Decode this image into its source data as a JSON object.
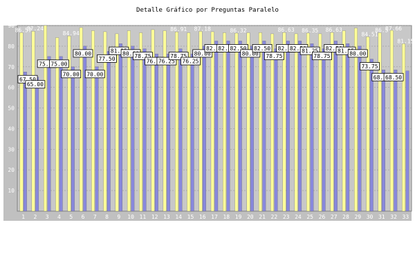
{
  "chart_data": {
    "type": "bar",
    "title": "Detalle Gráfico por Preguntas Paralelo",
    "xlabel": "",
    "ylabel": "",
    "ylim": [
      0,
      90
    ],
    "yticks": [
      10,
      20,
      30,
      40,
      50,
      60,
      70,
      80,
      90
    ],
    "grid": true,
    "categories": [
      "1",
      "2",
      "3",
      "4",
      "5",
      "6",
      "7",
      "8",
      "9",
      "10",
      "11",
      "12",
      "13",
      "14",
      "15",
      "16",
      "17",
      "18",
      "19",
      "20",
      "21",
      "22",
      "23",
      "24",
      "25",
      "26",
      "27",
      "28",
      "29",
      "30",
      "31",
      "32",
      "33"
    ],
    "series": [
      {
        "color": "#ffff99",
        "values": [
          86.57,
          87.24,
          90.0,
          84.14,
          84.94,
          89.0,
          87.5,
          87.0,
          86.0,
          87.5,
          86.5,
          88.0,
          87.5,
          86.91,
          86.5,
          87.18,
          87.0,
          86.5,
          86.32,
          86.5,
          86.59,
          86.0,
          86.63,
          86.0,
          86.35,
          86.0,
          86.63,
          87.5,
          88.8,
          84.51,
          86.5,
          87.66,
          81.15
        ],
        "labels": [
          "86.57",
          "87.24",
          "",
          "",
          "84.94",
          "",
          "",
          "",
          "",
          "",
          "",
          "",
          "",
          "86.91",
          "",
          "87.18",
          "",
          "",
          "86.32",
          "",
          "",
          "",
          "86.63",
          "",
          "86.35",
          "",
          "86.63",
          "",
          "",
          "84.51",
          "86.5",
          "87.66",
          "81.15"
        ]
      },
      {
        "color": "#8888dd",
        "values": [
          67.5,
          65.0,
          75.0,
          75.0,
          70.0,
          80.0,
          70.0,
          77.5,
          81.25,
          80.0,
          78.75,
          76.25,
          76.25,
          78.75,
          76.25,
          80.0,
          82.5,
          82.5,
          82.5,
          80.0,
          82.5,
          78.75,
          82.5,
          82.5,
          81.25,
          78.75,
          82.5,
          81.25,
          80.0,
          73.75,
          68.5,
          68.5,
          68.0
        ],
        "labels": [
          "67.50",
          "65.00",
          "75.00",
          "75.00",
          "70.00",
          "80.00",
          "70.00",
          "77.50",
          "81.25",
          "80.00",
          "78.75",
          "76.25",
          "76.25",
          "78.75",
          "76.25",
          "80.00",
          "82.50",
          "82.50",
          "82.50",
          "80.00",
          "82.50",
          "78.75",
          "82.50",
          "82.50",
          "81.25",
          "78.75",
          "82.50",
          "81.25",
          "80.00",
          "73.75",
          "68.50",
          "68.50",
          ""
        ]
      }
    ]
  }
}
